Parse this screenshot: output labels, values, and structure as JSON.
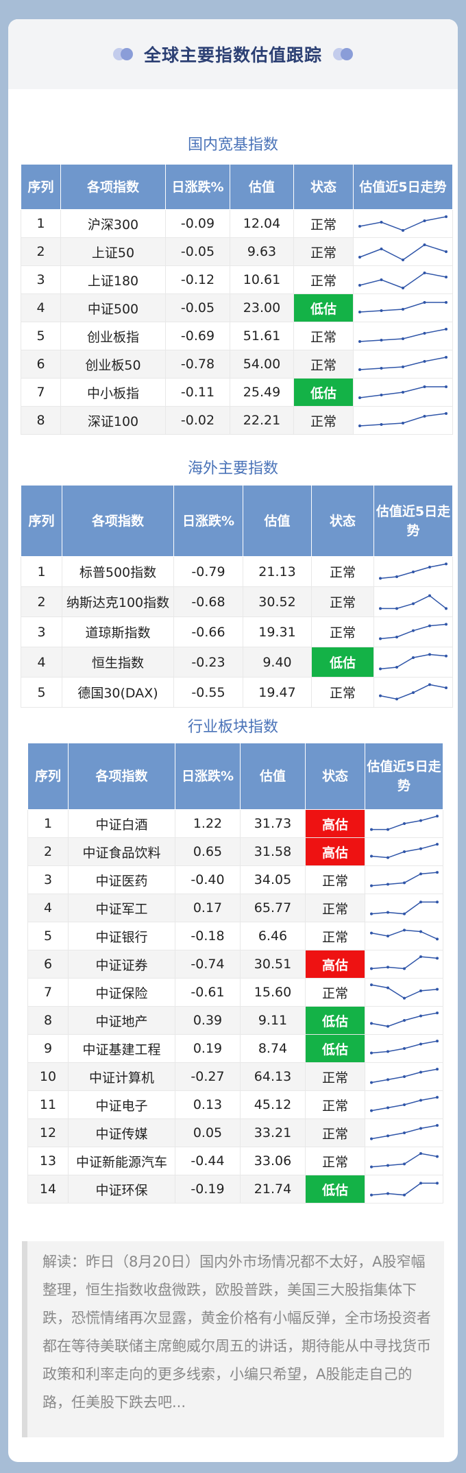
{
  "header": {
    "title": "全球主要指数估值跟踪"
  },
  "columns": [
    "序列",
    "各项指数",
    "日涨跌%",
    "估值",
    "状态",
    "估值近5日走势"
  ],
  "domestic": {
    "title": "国内宽基指数",
    "rows": [
      {
        "no": "1",
        "name": "沪深300",
        "chg": "-0.09",
        "val": "12.04",
        "status": "正常",
        "level": "normal",
        "trend": [
          22,
          25,
          19,
          26,
          29
        ]
      },
      {
        "no": "2",
        "name": "上证50",
        "chg": "-0.05",
        "val": "9.63",
        "status": "正常",
        "level": "normal",
        "trend": [
          20,
          26,
          18,
          29,
          24
        ]
      },
      {
        "no": "3",
        "name": "上证180",
        "chg": "-0.12",
        "val": "10.61",
        "status": "正常",
        "level": "normal",
        "trend": [
          20,
          24,
          18,
          29,
          26
        ]
      },
      {
        "no": "4",
        "name": "中证500",
        "chg": "-0.05",
        "val": "23.00",
        "status": "低估",
        "level": "low",
        "trend": [
          21,
          22,
          23,
          28,
          28
        ]
      },
      {
        "no": "5",
        "name": "创业板指",
        "chg": "-0.69",
        "val": "51.61",
        "status": "正常",
        "level": "normal",
        "trend": [
          20,
          21,
          22,
          26,
          29
        ]
      },
      {
        "no": "6",
        "name": "创业板50",
        "chg": "-0.78",
        "val": "54.00",
        "status": "正常",
        "level": "normal",
        "trend": [
          20,
          21,
          22,
          26,
          29
        ]
      },
      {
        "no": "7",
        "name": "中小板指",
        "chg": "-0.11",
        "val": "25.49",
        "status": "低估",
        "level": "low",
        "trend": [
          20,
          22,
          24,
          28,
          28
        ]
      },
      {
        "no": "8",
        "name": "深证100",
        "chg": "-0.02",
        "val": "22.21",
        "status": "正常",
        "level": "normal",
        "trend": [
          20,
          21,
          22,
          27,
          29
        ]
      }
    ]
  },
  "overseas": {
    "title": "海外主要指数",
    "rows": [
      {
        "no": "1",
        "name": "标普500指数",
        "chg": "-0.79",
        "val": "21.13",
        "status": "正常",
        "level": "normal",
        "trend": [
          20,
          21,
          24,
          27,
          29
        ]
      },
      {
        "no": "2",
        "name": "纳斯达克100指数",
        "chg": "-0.68",
        "val": "30.52",
        "status": "正常",
        "level": "normal",
        "trend": [
          20,
          20,
          23,
          28,
          20
        ]
      },
      {
        "no": "3",
        "name": "道琼斯指数",
        "chg": "-0.66",
        "val": "19.31",
        "status": "正常",
        "level": "normal",
        "trend": [
          20,
          21,
          25,
          28,
          29
        ]
      },
      {
        "no": "4",
        "name": "恒生指数",
        "chg": "-0.23",
        "val": "9.40",
        "status": "低估",
        "level": "low",
        "trend": [
          20,
          21,
          27,
          29,
          28
        ]
      },
      {
        "no": "5",
        "name": "德国30(DAX)",
        "chg": "-0.55",
        "val": "19.47",
        "status": "正常",
        "level": "normal",
        "trend": [
          22,
          20,
          24,
          29,
          27
        ]
      }
    ]
  },
  "sector": {
    "title": "行业板块指数",
    "rows": [
      {
        "no": "1",
        "name": "中证白酒",
        "chg": "1.22",
        "val": "31.73",
        "status": "高估",
        "level": "high",
        "trend": [
          20,
          20,
          24,
          26,
          29
        ]
      },
      {
        "no": "2",
        "name": "中证食品饮料",
        "chg": "0.65",
        "val": "31.58",
        "status": "高估",
        "level": "high",
        "trend": [
          21,
          20,
          24,
          26,
          29
        ]
      },
      {
        "no": "3",
        "name": "中证医药",
        "chg": "-0.40",
        "val": "34.05",
        "status": "正常",
        "level": "normal",
        "trend": [
          20,
          21,
          22,
          28,
          29
        ]
      },
      {
        "no": "4",
        "name": "中证军工",
        "chg": "0.17",
        "val": "65.77",
        "status": "正常",
        "level": "normal",
        "trend": [
          20,
          21,
          20,
          28,
          28
        ]
      },
      {
        "no": "5",
        "name": "中证银行",
        "chg": "-0.18",
        "val": "6.46",
        "status": "正常",
        "level": "normal",
        "trend": [
          26,
          24,
          28,
          27,
          22
        ]
      },
      {
        "no": "6",
        "name": "中证证券",
        "chg": "-0.74",
        "val": "30.51",
        "status": "高估",
        "level": "high",
        "trend": [
          21,
          22,
          21,
          29,
          28
        ]
      },
      {
        "no": "7",
        "name": "中证保险",
        "chg": "-0.61",
        "val": "15.60",
        "status": "正常",
        "level": "normal",
        "trend": [
          29,
          27,
          20,
          25,
          26
        ]
      },
      {
        "no": "8",
        "name": "中证地产",
        "chg": "0.39",
        "val": "9.11",
        "status": "低估",
        "level": "low",
        "trend": [
          22,
          20,
          24,
          27,
          29
        ]
      },
      {
        "no": "9",
        "name": "中证基建工程",
        "chg": "0.19",
        "val": "8.74",
        "status": "低估",
        "level": "low",
        "trend": [
          21,
          22,
          24,
          27,
          29
        ]
      },
      {
        "no": "10",
        "name": "中证计算机",
        "chg": "-0.27",
        "val": "64.13",
        "status": "正常",
        "level": "normal",
        "trend": [
          20,
          22,
          24,
          27,
          29
        ]
      },
      {
        "no": "11",
        "name": "中证电子",
        "chg": "0.13",
        "val": "45.12",
        "status": "正常",
        "level": "normal",
        "trend": [
          20,
          22,
          24,
          27,
          29
        ]
      },
      {
        "no": "12",
        "name": "中证传媒",
        "chg": "0.05",
        "val": "33.21",
        "status": "正常",
        "level": "normal",
        "trend": [
          20,
          22,
          24,
          27,
          29
        ]
      },
      {
        "no": "13",
        "name": "中证新能源汽车",
        "chg": "-0.44",
        "val": "33.06",
        "status": "正常",
        "level": "normal",
        "trend": [
          20,
          21,
          22,
          29,
          27
        ]
      },
      {
        "no": "14",
        "name": "中证环保",
        "chg": "-0.19",
        "val": "21.74",
        "status": "低估",
        "level": "low",
        "trend": [
          20,
          21,
          20,
          28,
          28
        ]
      }
    ]
  },
  "note": "解读：昨日（8月20日）国内外市场情况都不太好，A股窄幅整理，恒生指数收盘微跌，欧股普跌，美国三大股指集体下跌，恐慌情绪再次显露，黄金价格有小幅反弹，全市场投资者都在等待美联储主席鲍威尔周五的讲话，期待能从中寻找货币政策和利率走向的更多线索，小编只希望，A股能走自己的路，任美股下跌去吧...",
  "colors": {
    "normal": "#ffffff",
    "low": "#14b247",
    "high": "#ee1212",
    "header": "#6f97cc",
    "line": "#2f55a8"
  }
}
